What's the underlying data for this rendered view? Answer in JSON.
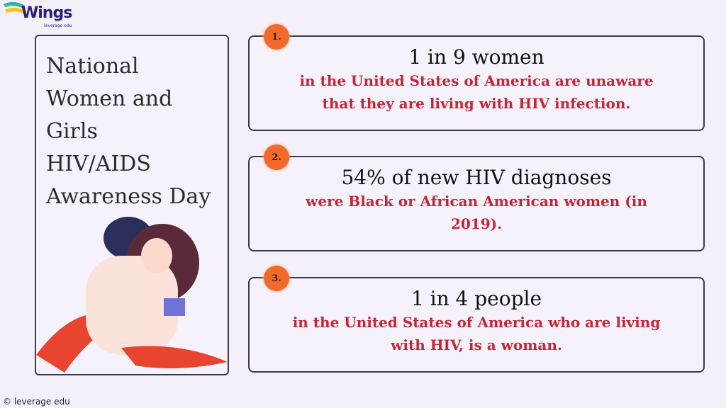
{
  "brand": {
    "logo_text": "Wings",
    "sub_text": "leverage edu"
  },
  "left_panel": {
    "title": "National\nWomen and\nGirls\nHIV/AIDS\nAwareness Day"
  },
  "cards": [
    {
      "number": "1.",
      "heading": "1 in 9 women",
      "body": "in the United States of America are unaware that they are living with HIV infection."
    },
    {
      "number": "2.",
      "heading": "54% of new HIV diagnoses",
      "body": "were Black or African American women (in 2019)."
    },
    {
      "number": "3.",
      "heading": "1 in 4 people",
      "body": "in the United States of America who are living with HIV, is a woman."
    }
  ],
  "footer": {
    "text": "© leverage edu"
  },
  "colors": {
    "accent": "#f26a2b",
    "body_text": "#c62535",
    "background": "#f4f0fa"
  }
}
